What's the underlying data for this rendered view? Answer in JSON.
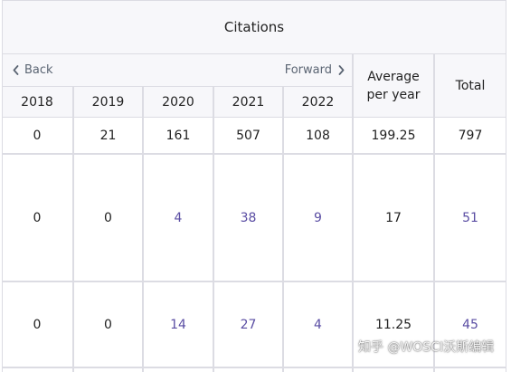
{
  "table": {
    "title": "Citations",
    "nav": {
      "back_label": "Back",
      "forward_label": "Forward"
    },
    "columns": {
      "years": [
        "2018",
        "2019",
        "2020",
        "2021",
        "2022"
      ],
      "average_line1": "Average",
      "average_line2": "per year",
      "total": "Total"
    },
    "rows": [
      {
        "values": [
          "0",
          "21",
          "161",
          "507",
          "108"
        ],
        "average": "199.25",
        "total": "797"
      },
      {
        "values": [
          "0",
          "0",
          "4",
          "38",
          "9"
        ],
        "average": "17",
        "total": "51"
      },
      {
        "values": [
          "0",
          "0",
          "14",
          "27",
          "4"
        ],
        "average": "11.25",
        "total": "45"
      }
    ]
  },
  "watermark": "知乎 @WOSCI沃斯编辑",
  "colors": {
    "link": "#5a4da3",
    "header_bg": "#f7f7fa",
    "grid": "#dcdce3"
  }
}
